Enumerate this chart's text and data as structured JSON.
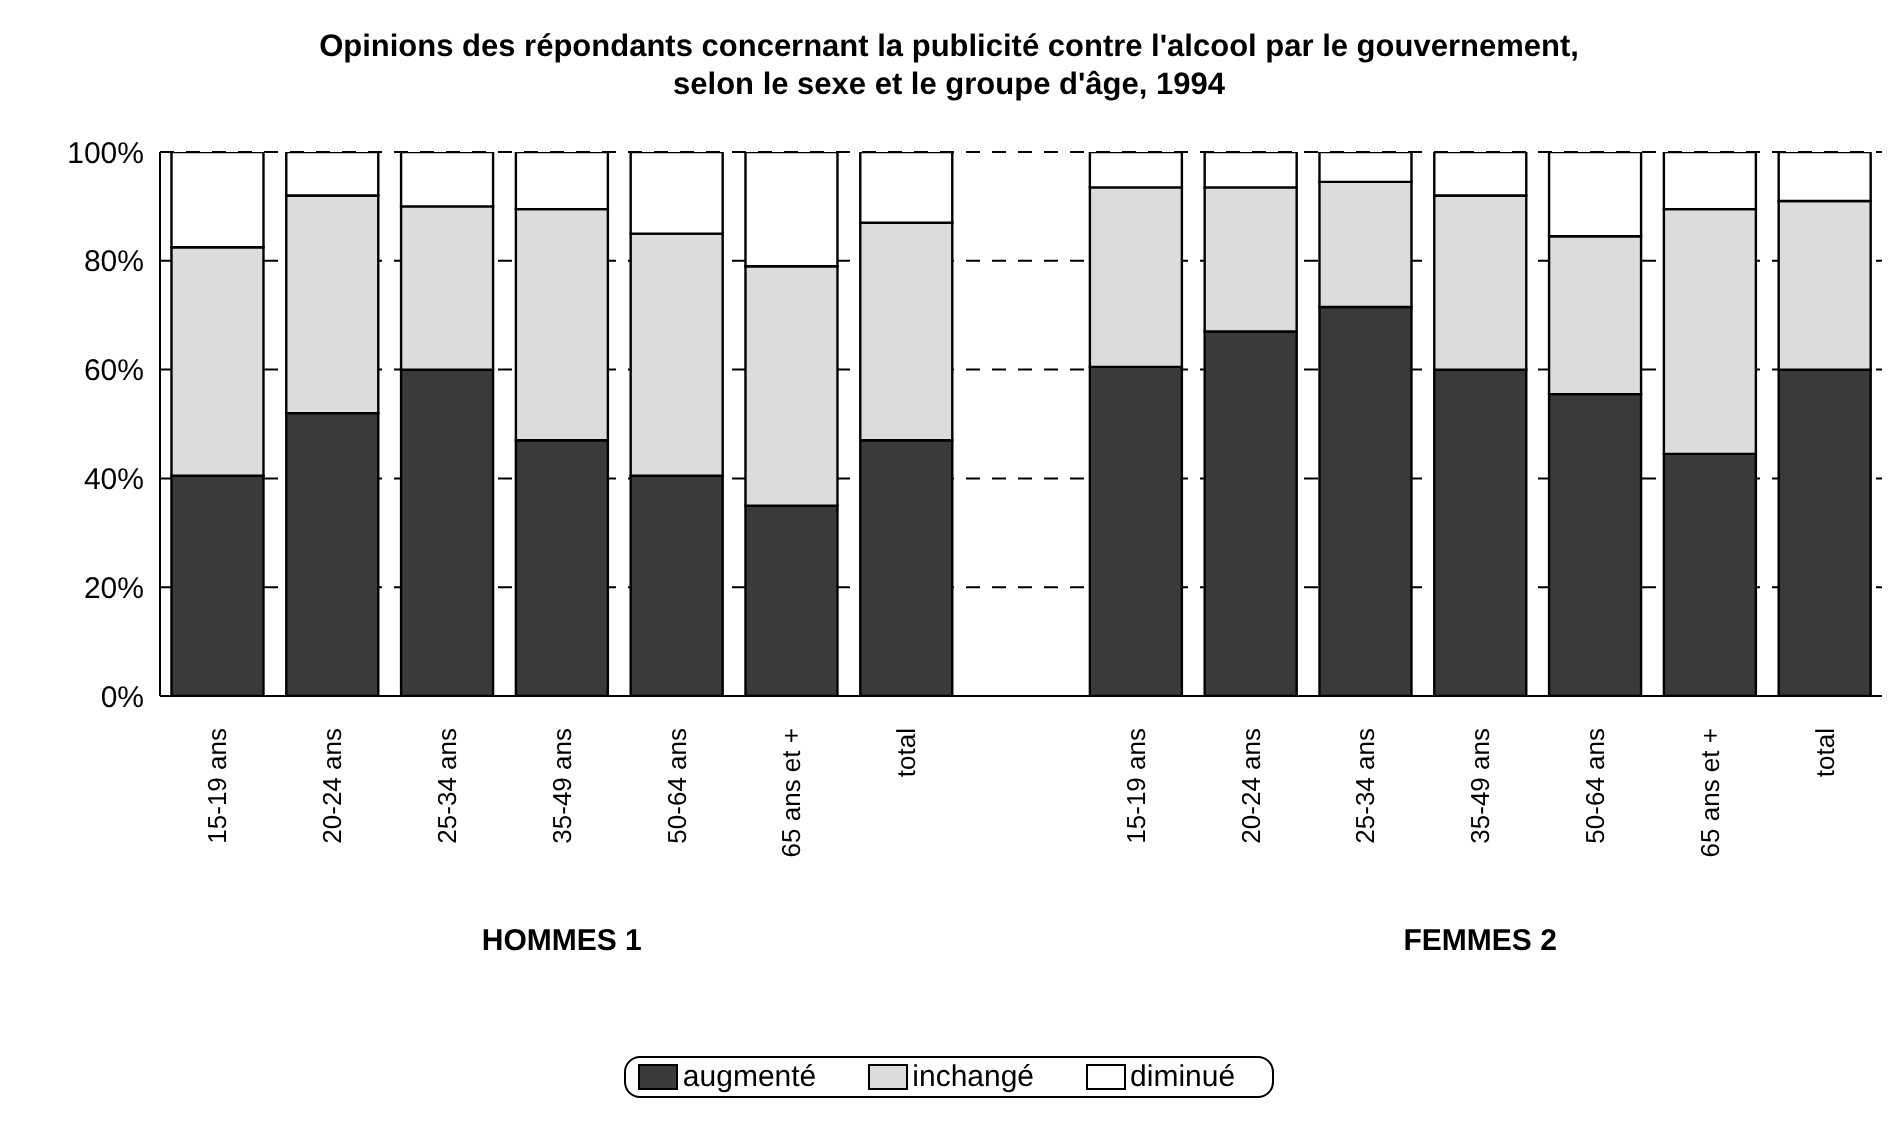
{
  "chart_data": {
    "type": "bar",
    "title": "Opinions des répondants concernant la publicité contre l'alcool par le gouvernement, selon le sexe et le groupe d'âge, 1994",
    "categories": [
      "15-19 ans",
      "20-24 ans",
      "25-34 ans",
      "35-49 ans",
      "50-64 ans",
      "65 ans et +",
      "total",
      null,
      "15-19 ans",
      "20-24 ans",
      "25-34 ans",
      "35-49 ans",
      "50-64 ans",
      "65 ans et +",
      "total"
    ],
    "stacked": true,
    "series": [
      {
        "name": "augmenté",
        "color": "#3a3a3a",
        "values": [
          40.5,
          52,
          60,
          47,
          40.5,
          35,
          47,
          null,
          60.5,
          67,
          71.5,
          60,
          55.5,
          44.5,
          60
        ]
      },
      {
        "name": "inchangé",
        "color": "#dcdcdc",
        "values": [
          42,
          40,
          30,
          42.5,
          44.5,
          44,
          40,
          null,
          33,
          26.5,
          23,
          32,
          29,
          45,
          31
        ]
      },
      {
        "name": "diminué",
        "color": "#ffffff",
        "values": [
          17.5,
          8,
          10,
          10.5,
          15,
          21,
          13,
          null,
          6.5,
          6.5,
          5.5,
          8,
          15.5,
          10.5,
          9
        ]
      }
    ],
    "ylim": [
      0,
      100
    ],
    "yticks": [
      {
        "value": 0,
        "label": "0%"
      },
      {
        "value": 20,
        "label": "20%"
      },
      {
        "value": 40,
        "label": "40%"
      },
      {
        "value": 60,
        "label": "60%"
      },
      {
        "value": 80,
        "label": "80%"
      },
      {
        "value": 100,
        "label": "100%"
      }
    ],
    "grid": "y",
    "legend": "bottom",
    "annotations": [
      "HOMMES 1",
      "FEMMES 2"
    ]
  }
}
